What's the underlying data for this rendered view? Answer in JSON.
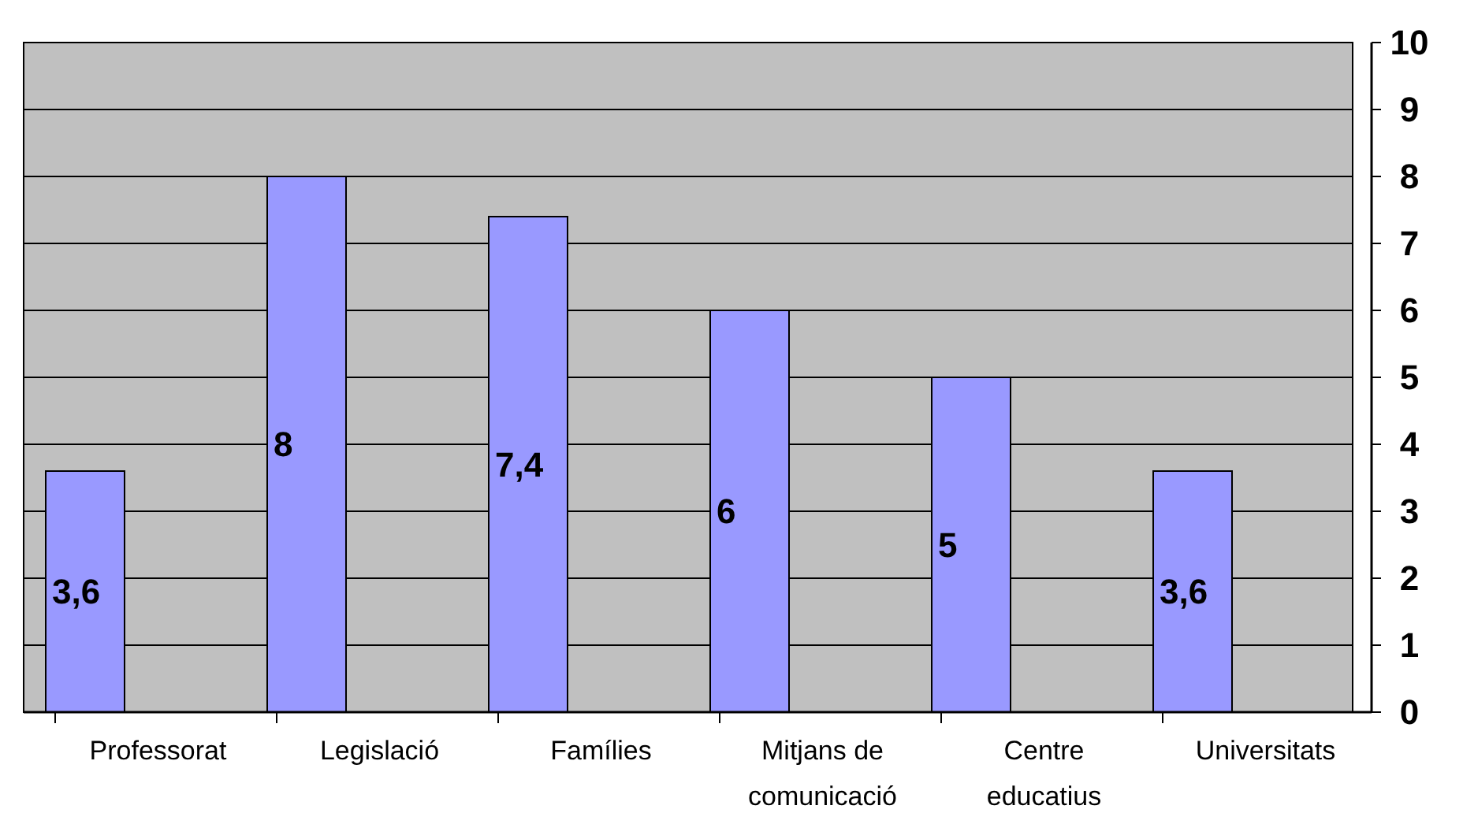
{
  "chart_data": {
    "type": "bar",
    "categories": [
      "Professorat",
      "Legislació",
      "Famílies",
      "Mitjans de comunicació",
      "Centre educatius",
      "Universitats"
    ],
    "values": [
      3.6,
      8,
      7.4,
      6,
      5,
      3.6
    ],
    "value_labels": [
      "3,6",
      "8",
      "7,4",
      "6",
      "5",
      "3,6"
    ],
    "color": "#9999ff",
    "ylim": [
      0,
      10
    ],
    "yticks": [
      0,
      1,
      2,
      3,
      4,
      5,
      6,
      7,
      8,
      9,
      10
    ],
    "grid": "y"
  }
}
